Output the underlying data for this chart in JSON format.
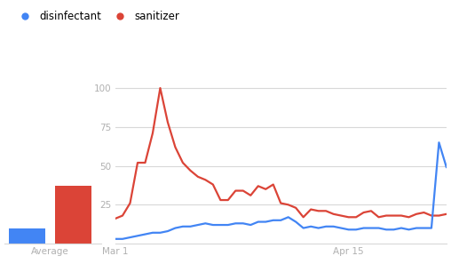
{
  "background_color": "#ffffff",
  "legend_labels": [
    "disinfectant",
    "sanitizer"
  ],
  "legend_colors": [
    "#4285f4",
    "#db4437"
  ],
  "bar_avg_disinfectant": 10,
  "bar_avg_sanitizer": 37,
  "bar_colors": [
    "#4285f4",
    "#db4437"
  ],
  "axis_tick_color": "#b0b0b0",
  "grid_color": "#d8d8d8",
  "yticks": [
    25,
    50,
    75,
    100
  ],
  "xtick_labels": [
    "Mar 1",
    "Apr 15"
  ],
  "avg_label": "Average",
  "line_color_disinfectant": "#4285f4",
  "line_color_sanitizer": "#db4437",
  "sanitizer_values": [
    16,
    18,
    26,
    52,
    52,
    71,
    100,
    78,
    62,
    52,
    47,
    43,
    41,
    38,
    28,
    28,
    34,
    34,
    31,
    37,
    35,
    38,
    26,
    25,
    23,
    17,
    22,
    21,
    21,
    19,
    18,
    17,
    17,
    20,
    21,
    17,
    18,
    18,
    18,
    17,
    19,
    20,
    18,
    18,
    19
  ],
  "disinfectant_values": [
    3,
    3,
    4,
    5,
    6,
    7,
    7,
    8,
    10,
    11,
    11,
    12,
    13,
    12,
    12,
    12,
    13,
    13,
    12,
    14,
    14,
    15,
    15,
    17,
    14,
    10,
    11,
    10,
    11,
    11,
    10,
    9,
    9,
    10,
    10,
    10,
    9,
    9,
    10,
    9,
    10,
    10,
    10,
    65,
    49
  ],
  "mar1_idx": 0,
  "apr15_idx": 31,
  "n_points": 45
}
